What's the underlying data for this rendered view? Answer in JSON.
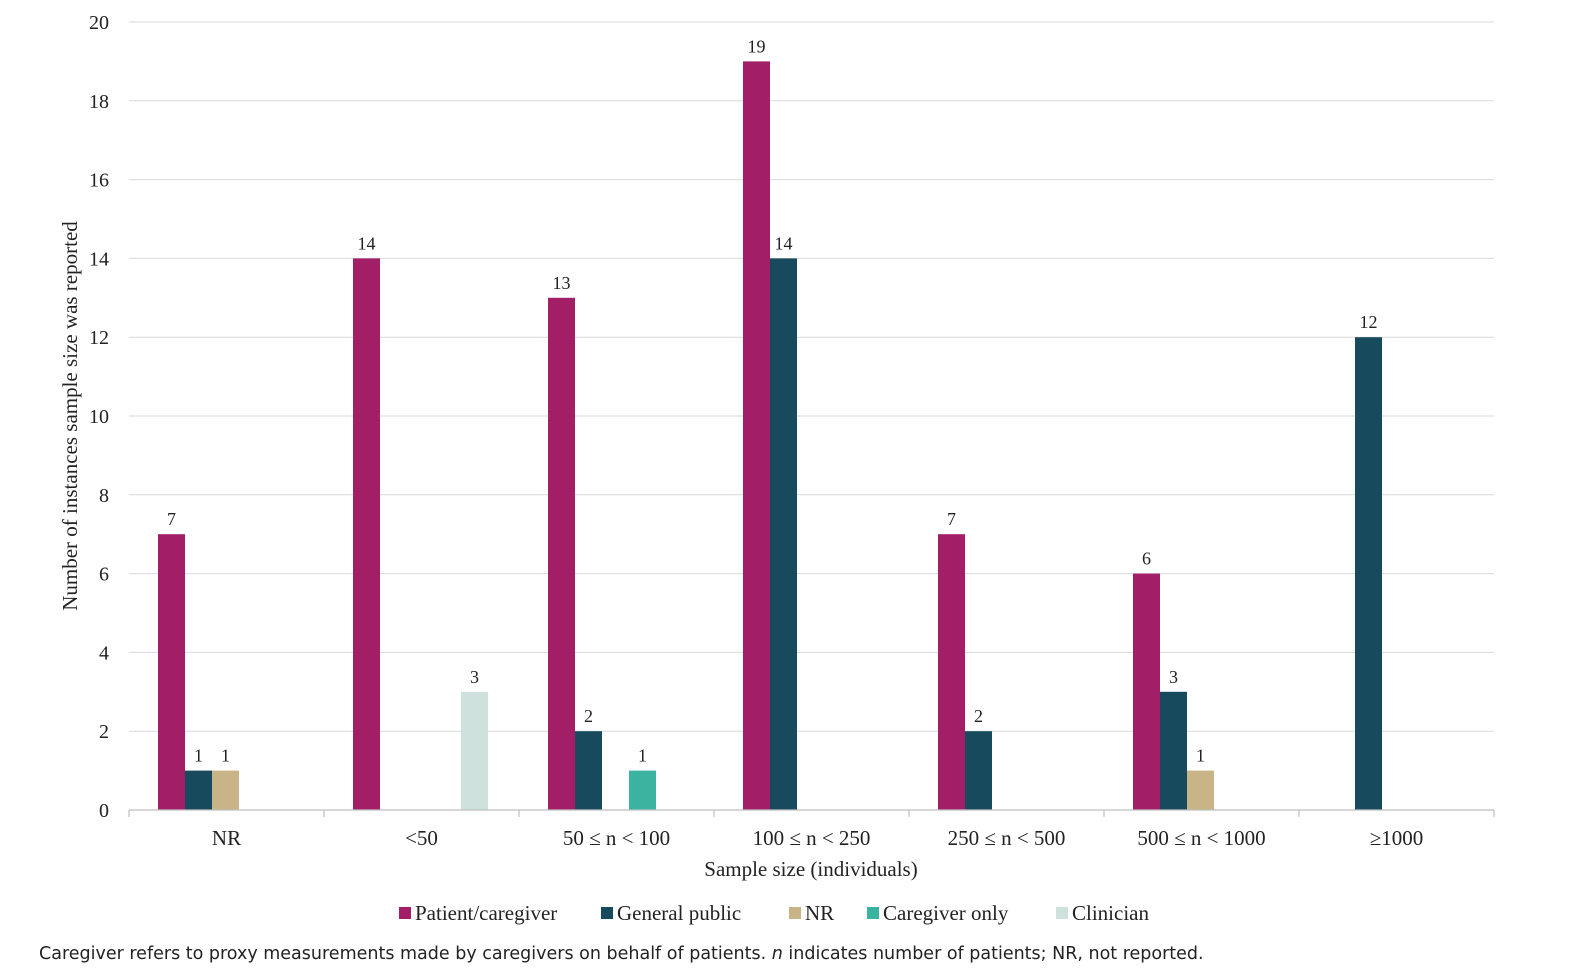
{
  "chart_data": {
    "type": "bar",
    "xlabel": "Sample size (individuals)",
    "ylabel": "Number of instances sample size was reported",
    "ylim": [
      0,
      20
    ],
    "yticks": [
      0,
      2,
      4,
      6,
      8,
      10,
      12,
      14,
      16,
      18,
      20
    ],
    "grid": true,
    "legend": "bottom",
    "categories": [
      "NR",
      "<50",
      "50 ≤ n < 100",
      "100 ≤ n < 250",
      "250 ≤ n < 500",
      "500 ≤ n < 1000",
      "≥1000"
    ],
    "series": [
      {
        "name": "Patient/caregiver",
        "color": "#A21F68",
        "values": [
          7,
          14,
          13,
          19,
          7,
          6,
          0
        ]
      },
      {
        "name": "General public",
        "color": "#174A5C",
        "values": [
          1,
          0,
          2,
          14,
          2,
          3,
          12
        ]
      },
      {
        "name": "NR",
        "color": "#C8B486",
        "values": [
          1,
          0,
          0,
          0,
          0,
          1,
          0
        ]
      },
      {
        "name": "Caregiver only",
        "color": "#3AB3A0",
        "values": [
          0,
          0,
          1,
          0,
          0,
          0,
          0
        ]
      },
      {
        "name": "Clinician",
        "color": "#CFE1DC",
        "values": [
          0,
          3,
          0,
          0,
          0,
          0,
          0
        ]
      }
    ]
  },
  "caption": {
    "part1": "Caregiver refers to proxy measurements made by caregivers on behalf of patients. ",
    "italic": "n",
    "part2": " indicates number of patients; NR, not reported."
  }
}
